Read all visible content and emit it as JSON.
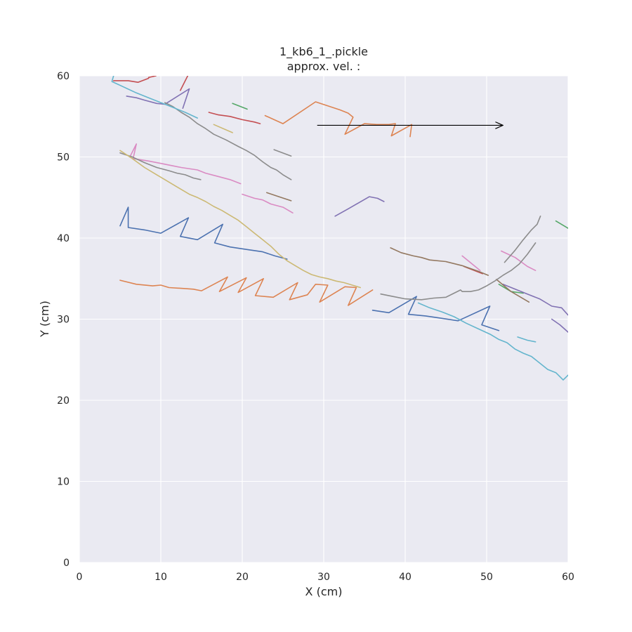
{
  "chart_data": {
    "type": "line",
    "title": "1_kb6_1_.pickle",
    "subtitle": "approx. vel. :",
    "xlabel": "X (cm)",
    "ylabel": "Y (cm)",
    "xlim": [
      0,
      60
    ],
    "ylim": [
      0,
      60
    ],
    "xticks": [
      "0",
      "10",
      "20",
      "30",
      "40",
      "50",
      "60"
    ],
    "yticks": [
      "0",
      "10",
      "20",
      "30",
      "40",
      "50",
      "60"
    ],
    "grid": true,
    "background_color": "#eaeaf2",
    "arrow": {
      "from": [
        29.2,
        53.9
      ],
      "to": [
        52.0,
        53.9
      ],
      "color": "#000000"
    },
    "series": [
      {
        "color": "#4c72b0",
        "points": [
          [
            5.0,
            41.5
          ],
          [
            6.0,
            43.8
          ],
          [
            6.0,
            41.3
          ],
          [
            8.0,
            41.0
          ],
          [
            10.0,
            40.6
          ],
          [
            13.4,
            42.5
          ],
          [
            12.4,
            40.2
          ],
          [
            14.5,
            39.8
          ],
          [
            17.6,
            41.7
          ],
          [
            16.6,
            39.4
          ],
          [
            18.5,
            38.9
          ],
          [
            20.5,
            38.6
          ],
          [
            22.5,
            38.3
          ],
          [
            24.0,
            37.8
          ],
          [
            25.5,
            37.4
          ]
        ]
      },
      {
        "color": "#4c72b0",
        "points": [
          [
            36.0,
            31.1
          ],
          [
            38.0,
            30.8
          ],
          [
            41.4,
            32.8
          ],
          [
            40.4,
            30.6
          ],
          [
            42.5,
            30.4
          ],
          [
            44.5,
            30.1
          ],
          [
            46.5,
            29.8
          ],
          [
            50.4,
            31.6
          ],
          [
            49.4,
            29.3
          ],
          [
            51.5,
            28.6
          ]
        ]
      },
      {
        "color": "#dd8452",
        "points": [
          [
            5.0,
            34.8
          ],
          [
            7.0,
            34.3
          ],
          [
            9.0,
            34.1
          ],
          [
            10.0,
            34.2
          ],
          [
            11.0,
            33.9
          ],
          [
            12.5,
            33.8
          ],
          [
            14.0,
            33.7
          ],
          [
            15.0,
            33.5
          ],
          [
            18.2,
            35.2
          ],
          [
            17.2,
            33.4
          ],
          [
            20.5,
            35.1
          ],
          [
            19.5,
            33.3
          ],
          [
            22.6,
            35.0
          ],
          [
            21.6,
            32.9
          ],
          [
            23.8,
            32.7
          ],
          [
            26.8,
            34.5
          ],
          [
            25.8,
            32.4
          ],
          [
            28.0,
            33.0
          ],
          [
            29.0,
            34.3
          ],
          [
            30.5,
            34.2
          ],
          [
            29.5,
            32.1
          ],
          [
            32.6,
            34.0
          ],
          [
            34.0,
            33.9
          ],
          [
            33.0,
            31.7
          ],
          [
            36.0,
            33.6
          ]
        ]
      },
      {
        "color": "#dd8452",
        "points": [
          [
            22.8,
            55.1
          ],
          [
            25.0,
            54.1
          ],
          [
            29.0,
            56.8
          ],
          [
            30.5,
            56.3
          ],
          [
            32.0,
            55.8
          ],
          [
            33.0,
            55.4
          ],
          [
            33.6,
            54.9
          ],
          [
            32.6,
            52.8
          ],
          [
            35.0,
            54.1
          ],
          [
            36.5,
            54.0
          ],
          [
            38.0,
            54.0
          ],
          [
            38.8,
            54.1
          ],
          [
            38.3,
            52.6
          ],
          [
            40.8,
            54.0
          ],
          [
            40.6,
            52.5
          ]
        ]
      },
      {
        "color": "#55a868",
        "points": [
          [
            18.8,
            56.6
          ],
          [
            20.6,
            55.9
          ]
        ]
      },
      {
        "color": "#55a868",
        "points": [
          [
            51.5,
            34.3
          ],
          [
            53.0,
            33.4
          ],
          [
            54.5,
            33.2
          ]
        ]
      },
      {
        "color": "#55a868",
        "points": [
          [
            58.5,
            42.1
          ],
          [
            60.0,
            41.2
          ]
        ]
      },
      {
        "color": "#c44e52",
        "points": [
          [
            4.2,
            59.4
          ],
          [
            6.0,
            59.4
          ],
          [
            7.2,
            59.2
          ],
          [
            8.5,
            59.7
          ],
          [
            8.5,
            59.8
          ],
          [
            9.4,
            60.0
          ]
        ]
      },
      {
        "color": "#c44e52",
        "points": [
          [
            12.4,
            58.2
          ],
          [
            13.3,
            60.0
          ]
        ]
      },
      {
        "color": "#c44e52",
        "points": [
          [
            15.9,
            55.5
          ],
          [
            17.0,
            55.2
          ],
          [
            18.5,
            55.0
          ],
          [
            20.0,
            54.6
          ],
          [
            21.5,
            54.3
          ],
          [
            22.2,
            54.1
          ]
        ]
      },
      {
        "color": "#c44e52",
        "points": [
          [
            47.2,
            36.5
          ],
          [
            49.5,
            35.6
          ]
        ]
      },
      {
        "color": "#8172b3",
        "points": [
          [
            5.8,
            57.5
          ],
          [
            7.0,
            57.3
          ],
          [
            8.0,
            57.0
          ],
          [
            9.5,
            56.6
          ],
          [
            10.5,
            56.5
          ],
          [
            13.5,
            58.4
          ],
          [
            12.7,
            56.0
          ]
        ]
      },
      {
        "color": "#8172b3",
        "points": [
          [
            31.4,
            42.7
          ],
          [
            33.0,
            43.6
          ],
          [
            35.6,
            45.1
          ],
          [
            36.6,
            44.9
          ],
          [
            37.4,
            44.5
          ]
        ]
      },
      {
        "color": "#8172b3",
        "points": [
          [
            52.0,
            34.3
          ],
          [
            53.5,
            33.7
          ],
          [
            55.0,
            33.1
          ],
          [
            56.5,
            32.5
          ],
          [
            58.0,
            31.6
          ],
          [
            59.2,
            31.4
          ],
          [
            60.0,
            30.5
          ]
        ]
      },
      {
        "color": "#8172b3",
        "points": [
          [
            58.0,
            30.0
          ],
          [
            59.0,
            29.3
          ],
          [
            60.0,
            28.4
          ]
        ]
      },
      {
        "color": "#937860",
        "points": [
          [
            23.0,
            45.6
          ],
          [
            24.5,
            45.1
          ],
          [
            26.0,
            44.6
          ]
        ]
      },
      {
        "color": "#937860",
        "points": [
          [
            38.2,
            38.8
          ],
          [
            39.5,
            38.2
          ],
          [
            41.0,
            37.8
          ],
          [
            42.0,
            37.6
          ],
          [
            43.0,
            37.3
          ],
          [
            45.0,
            37.1
          ],
          [
            47.0,
            36.6
          ],
          [
            49.0,
            35.9
          ],
          [
            50.2,
            35.4
          ]
        ]
      },
      {
        "color": "#937860",
        "points": [
          [
            51.2,
            34.9
          ],
          [
            53.0,
            33.4
          ],
          [
            55.2,
            32.1
          ]
        ]
      },
      {
        "color": "#da8bc3",
        "points": [
          [
            6.2,
            50.0
          ],
          [
            7.0,
            51.6
          ],
          [
            6.6,
            49.8
          ],
          [
            8.5,
            49.5
          ],
          [
            10.0,
            49.2
          ],
          [
            11.5,
            48.9
          ],
          [
            12.5,
            48.7
          ],
          [
            14.5,
            48.4
          ],
          [
            15.5,
            48.0
          ],
          [
            17.0,
            47.6
          ],
          [
            18.5,
            47.2
          ],
          [
            19.8,
            46.7
          ]
        ]
      },
      {
        "color": "#da8bc3",
        "points": [
          [
            20.0,
            45.4
          ],
          [
            21.5,
            44.9
          ],
          [
            22.5,
            44.7
          ],
          [
            23.5,
            44.2
          ],
          [
            25.0,
            43.8
          ],
          [
            26.2,
            43.1
          ]
        ]
      },
      {
        "color": "#da8bc3",
        "points": [
          [
            47.0,
            37.8
          ],
          [
            49.2,
            36.0
          ]
        ]
      },
      {
        "color": "#da8bc3",
        "points": [
          [
            51.8,
            38.4
          ],
          [
            53.5,
            37.6
          ],
          [
            55.0,
            36.5
          ],
          [
            56.0,
            36.0
          ]
        ]
      },
      {
        "color": "#8c8c8c",
        "points": [
          [
            10.5,
            56.7
          ],
          [
            11.5,
            56.2
          ],
          [
            12.5,
            55.5
          ],
          [
            13.5,
            54.9
          ],
          [
            14.5,
            54.1
          ],
          [
            15.5,
            53.5
          ],
          [
            16.5,
            52.8
          ],
          [
            18.0,
            52.1
          ],
          [
            19.5,
            51.3
          ],
          [
            20.5,
            50.8
          ],
          [
            21.5,
            50.2
          ],
          [
            22.5,
            49.4
          ],
          [
            23.5,
            48.7
          ],
          [
            24.2,
            48.4
          ],
          [
            25.0,
            47.8
          ],
          [
            26.0,
            47.2
          ]
        ]
      },
      {
        "color": "#8c8c8c",
        "points": [
          [
            5.0,
            50.5
          ],
          [
            6.5,
            50.0
          ],
          [
            8.0,
            49.3
          ],
          [
            9.5,
            48.7
          ],
          [
            11.0,
            48.3
          ],
          [
            12.0,
            48.0
          ],
          [
            13.0,
            47.8
          ],
          [
            14.0,
            47.4
          ],
          [
            14.9,
            47.2
          ]
        ]
      },
      {
        "color": "#8c8c8c",
        "points": [
          [
            23.9,
            50.9
          ],
          [
            26.0,
            50.1
          ]
        ]
      },
      {
        "color": "#8c8c8c",
        "points": [
          [
            37.0,
            33.1
          ],
          [
            38.5,
            32.8
          ],
          [
            40.0,
            32.5
          ],
          [
            42.0,
            32.4
          ],
          [
            43.5,
            32.6
          ],
          [
            45.0,
            32.7
          ],
          [
            46.0,
            33.2
          ],
          [
            46.8,
            33.6
          ],
          [
            47.0,
            33.4
          ],
          [
            48.0,
            33.4
          ],
          [
            49.0,
            33.6
          ],
          [
            50.0,
            34.1
          ],
          [
            51.0,
            34.7
          ],
          [
            52.0,
            35.4
          ],
          [
            53.0,
            36.0
          ],
          [
            54.0,
            36.8
          ],
          [
            55.0,
            38.0
          ],
          [
            55.5,
            38.7
          ],
          [
            56.0,
            39.4
          ]
        ]
      },
      {
        "color": "#8c8c8c",
        "points": [
          [
            52.2,
            37.0
          ],
          [
            53.5,
            38.5
          ],
          [
            54.5,
            39.8
          ],
          [
            55.5,
            41.0
          ],
          [
            56.2,
            41.7
          ],
          [
            56.6,
            42.7
          ]
        ]
      },
      {
        "color": "#ccb974",
        "points": [
          [
            5.0,
            50.8
          ],
          [
            6.5,
            49.8
          ],
          [
            8.0,
            48.7
          ],
          [
            9.5,
            47.8
          ],
          [
            11.0,
            46.9
          ],
          [
            12.5,
            46.0
          ],
          [
            13.5,
            45.4
          ],
          [
            14.5,
            45.0
          ],
          [
            15.5,
            44.5
          ],
          [
            16.5,
            43.9
          ],
          [
            17.5,
            43.4
          ],
          [
            18.5,
            42.8
          ],
          [
            19.5,
            42.2
          ],
          [
            20.5,
            41.4
          ],
          [
            21.5,
            40.6
          ],
          [
            22.5,
            39.8
          ],
          [
            23.5,
            39.0
          ],
          [
            24.5,
            38.0
          ],
          [
            25.5,
            37.2
          ],
          [
            26.5,
            36.6
          ],
          [
            27.5,
            36.0
          ],
          [
            28.5,
            35.5
          ],
          [
            29.5,
            35.2
          ],
          [
            30.5,
            35.0
          ],
          [
            31.5,
            34.7
          ],
          [
            32.5,
            34.5
          ],
          [
            33.5,
            34.2
          ],
          [
            34.5,
            33.9
          ]
        ]
      },
      {
        "color": "#ccb974",
        "points": [
          [
            16.5,
            54.0
          ],
          [
            18.8,
            53.0
          ]
        ]
      },
      {
        "color": "#64b5cd",
        "points": [
          [
            4.2,
            60.0
          ],
          [
            4.0,
            59.3
          ],
          [
            5.5,
            58.6
          ],
          [
            7.0,
            57.9
          ],
          [
            8.5,
            57.3
          ],
          [
            10.0,
            56.7
          ],
          [
            11.5,
            56.1
          ],
          [
            13.0,
            55.5
          ],
          [
            14.5,
            54.8
          ]
        ]
      },
      {
        "color": "#64b5cd",
        "points": [
          [
            41.6,
            32.0
          ],
          [
            43.0,
            31.4
          ],
          [
            44.5,
            30.9
          ],
          [
            46.0,
            30.3
          ],
          [
            47.5,
            29.5
          ],
          [
            49.0,
            28.8
          ],
          [
            50.5,
            28.1
          ],
          [
            51.5,
            27.5
          ],
          [
            52.5,
            27.1
          ],
          [
            53.5,
            26.3
          ],
          [
            54.5,
            25.8
          ],
          [
            55.5,
            25.4
          ],
          [
            56.5,
            24.6
          ],
          [
            57.5,
            23.8
          ],
          [
            58.5,
            23.4
          ],
          [
            59.4,
            22.5
          ],
          [
            60.0,
            23.1
          ]
        ]
      },
      {
        "color": "#64b5cd",
        "points": [
          [
            53.8,
            27.8
          ],
          [
            55.0,
            27.4
          ],
          [
            56.0,
            27.2
          ]
        ]
      }
    ]
  }
}
